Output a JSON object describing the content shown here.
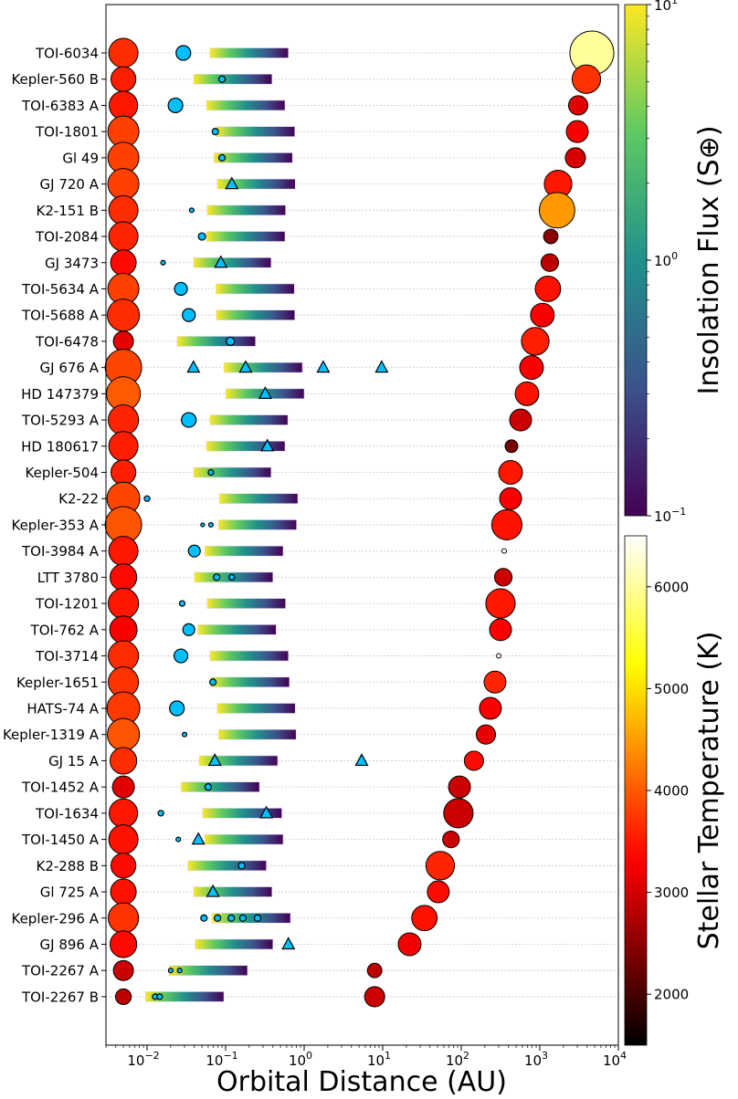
{
  "chart_data": {
    "type": "scatter",
    "xlabel": "Orbital Distance (AU)",
    "xscale": "log",
    "xlim": [
      0.003,
      10000
    ],
    "xticks": [
      {
        "base": "10",
        "exp": "−2"
      },
      {
        "base": "10",
        "exp": "−1"
      },
      {
        "base": "10",
        "exp": "0"
      },
      {
        "base": "10",
        "exp": "1"
      },
      {
        "base": "10",
        "exp": "2"
      },
      {
        "base": "10",
        "exp": "3"
      },
      {
        "base": "10",
        "exp": "4"
      }
    ],
    "grid": "horizontal dotted per system",
    "planet_color": "#00bfff",
    "planet_markers": {
      "o": "circle",
      "^": "triangle"
    },
    "star_position_au": 0.005,
    "colorbars": [
      {
        "label": "Insolation Flux (S⊕)",
        "cmap": "viridis",
        "scale": "log",
        "range": [
          0.1,
          10
        ],
        "ticks": [
          {
            "base": "10",
            "exp": "1"
          },
          {
            "base": "10",
            "exp": "0"
          },
          {
            "base": "10",
            "exp": "−1"
          }
        ]
      },
      {
        "label": "Stellar Temperature (K)",
        "cmap": "hot",
        "range": [
          1500,
          6500
        ],
        "ticks": [
          "6000",
          "5000",
          "4000",
          "3000",
          "2000"
        ]
      }
    ],
    "systems": [
      {
        "name": "TOI-6034",
        "star": {
          "T": 3650,
          "s": 0.8
        },
        "planets": [
          {
            "a": 0.029,
            "s": 1.0,
            "m": "o"
          }
        ],
        "hz": [
          0.063,
          0.63
        ],
        "comp": {
          "a": 4600,
          "T": 6000,
          "s": 1.0
        }
      },
      {
        "name": "Kepler-560 B",
        "star": {
          "T": 3550,
          "s": 0.68
        },
        "planets": [
          {
            "a": 0.09,
            "s": 0.44,
            "m": "o"
          }
        ],
        "hz": [
          0.039,
          0.39
        ],
        "comp": {
          "a": 3920,
          "T": 3700,
          "s": 0.65
        }
      },
      {
        "name": "TOI-6383 A",
        "star": {
          "T": 3500,
          "s": 0.78
        },
        "planets": [
          {
            "a": 0.023,
            "s": 1.0,
            "m": "o"
          }
        ],
        "hz": [
          0.057,
          0.57
        ],
        "comp": {
          "a": 3080,
          "T": 3100,
          "s": 0.44
        }
      },
      {
        "name": "TOI-1801",
        "star": {
          "T": 3800,
          "s": 0.85
        },
        "planets": [
          {
            "a": 0.074,
            "s": 0.44,
            "m": "o"
          }
        ],
        "hz": [
          0.076,
          0.76
        ],
        "comp": {
          "a": 3000,
          "T": 3300,
          "s": 0.5
        }
      },
      {
        "name": "Gl 49",
        "star": {
          "T": 3800,
          "s": 0.85
        },
        "planets": [
          {
            "a": 0.09,
            "s": 0.44,
            "m": "o"
          }
        ],
        "hz": [
          0.071,
          0.71
        ],
        "comp": {
          "a": 2840,
          "T": 3050,
          "s": 0.46
        }
      },
      {
        "name": "GJ 720 A",
        "star": {
          "T": 3800,
          "s": 0.85
        },
        "planets": [
          {
            "a": 0.12,
            "s": 1,
            "m": "^"
          }
        ],
        "hz": [
          0.078,
          0.77
        ],
        "comp": {
          "a": 1710,
          "T": 3500,
          "s": 0.63
        }
      },
      {
        "name": "K2-151 B",
        "star": {
          "T": 3650,
          "s": 0.8
        },
        "planets": [
          {
            "a": 0.037,
            "s": 0.31,
            "m": "o"
          }
        ],
        "hz": [
          0.058,
          0.58
        ],
        "comp": {
          "a": 1660,
          "T": 4470,
          "s": 0.81
        }
      },
      {
        "name": "TOI-2084",
        "star": {
          "T": 3600,
          "s": 0.8
        },
        "planets": [
          {
            "a": 0.05,
            "s": 0.5,
            "m": "o"
          }
        ],
        "hz": [
          0.057,
          0.57
        ],
        "comp": {
          "a": 1380,
          "T": 2500,
          "s": 0.33
        }
      },
      {
        "name": "GJ 3473",
        "star": {
          "T": 3400,
          "s": 0.7
        },
        "planets": [
          {
            "a": 0.016,
            "s": 0.31,
            "m": "o"
          },
          {
            "a": 0.087,
            "s": 1,
            "m": "^"
          }
        ],
        "hz": [
          0.039,
          0.38
        ],
        "comp": {
          "a": 1340,
          "T": 2850,
          "s": 0.4
        }
      },
      {
        "name": "TOI-5634 A",
        "star": {
          "T": 3800,
          "s": 0.85
        },
        "planets": [
          {
            "a": 0.027,
            "s": 0.88,
            "m": "o"
          }
        ],
        "hz": [
          0.075,
          0.75
        ],
        "comp": {
          "a": 1270,
          "T": 3450,
          "s": 0.58
        }
      },
      {
        "name": "TOI-5688 A",
        "star": {
          "T": 3650,
          "s": 0.88
        },
        "planets": [
          {
            "a": 0.034,
            "s": 0.88,
            "m": "o"
          }
        ],
        "hz": [
          0.076,
          0.76
        ],
        "comp": {
          "a": 1080,
          "T": 3300,
          "s": 0.54
        }
      },
      {
        "name": "TOI-6478",
        "star": {
          "T": 3150,
          "s": 0.55
        },
        "planets": [
          {
            "a": 0.115,
            "s": 0.56,
            "m": "o"
          }
        ],
        "hz": [
          0.024,
          0.24
        ],
        "comp": {
          "a": 875,
          "T": 3550,
          "s": 0.63
        }
      },
      {
        "name": "GJ 676 A",
        "star": {
          "T": 3850,
          "s": 1.0
        },
        "planets": [
          {
            "a": 0.039,
            "s": 1,
            "m": "^"
          },
          {
            "a": 0.18,
            "s": 1,
            "m": "^"
          },
          {
            "a": 1.75,
            "s": 1,
            "m": "^"
          },
          {
            "a": 9.7,
            "s": 1,
            "m": "^"
          }
        ],
        "hz": [
          0.095,
          0.95
        ],
        "comp": {
          "a": 785,
          "T": 3300,
          "s": 0.54
        }
      },
      {
        "name": "HD 147379",
        "star": {
          "T": 4000,
          "s": 0.93
        },
        "planets": [
          {
            "a": 0.32,
            "s": 1,
            "m": "^"
          }
        ],
        "hz": [
          0.1,
          1.0
        ],
        "comp": {
          "a": 687,
          "T": 3450,
          "s": 0.54
        }
      },
      {
        "name": "TOI-5293 A",
        "star": {
          "T": 3600,
          "s": 0.83
        },
        "planets": [
          {
            "a": 0.034,
            "s": 1.0,
            "m": "o"
          }
        ],
        "hz": [
          0.063,
          0.62
        ],
        "comp": {
          "a": 570,
          "T": 2950,
          "s": 0.5
        }
      },
      {
        "name": "HD 180617",
        "star": {
          "T": 3550,
          "s": 0.8
        },
        "planets": [
          {
            "a": 0.34,
            "s": 1,
            "m": "^"
          }
        ],
        "hz": [
          0.057,
          0.57
        ],
        "comp": {
          "a": 436,
          "T": 2350,
          "s": 0.29
        }
      },
      {
        "name": "Kepler-504",
        "star": {
          "T": 3550,
          "s": 0.68
        },
        "planets": [
          {
            "a": 0.065,
            "s": 0.38,
            "m": "o"
          }
        ],
        "hz": [
          0.039,
          0.38
        ],
        "comp": {
          "a": 425,
          "T": 3500,
          "s": 0.54
        }
      },
      {
        "name": "K2-22",
        "star": {
          "T": 3850,
          "s": 0.9
        },
        "planets": [
          {
            "a": 0.01,
            "s": 0.38,
            "m": "o"
          }
        ],
        "hz": [
          0.083,
          0.83
        ],
        "comp": {
          "a": 425,
          "T": 3300,
          "s": 0.5
        }
      },
      {
        "name": "Kepler-353 A",
        "star": {
          "T": 3950,
          "s": 1.0
        },
        "planets": [
          {
            "a": 0.051,
            "s": 0.25,
            "m": "o"
          },
          {
            "a": 0.065,
            "s": 0.31,
            "m": "o"
          }
        ],
        "hz": [
          0.081,
          0.8
        ],
        "comp": {
          "a": 381,
          "T": 3450,
          "s": 0.69
        }
      },
      {
        "name": "TOI-3984 A",
        "star": {
          "T": 3500,
          "s": 0.8
        },
        "planets": [
          {
            "a": 0.04,
            "s": 0.81,
            "m": "o"
          }
        ],
        "hz": [
          0.054,
          0.54
        ],
        "comp": {
          "a": 352,
          "T": null,
          "s": 0.1
        }
      },
      {
        "name": "LTT 3780",
        "star": {
          "T": 3400,
          "s": 0.73
        },
        "planets": [
          {
            "a": 0.077,
            "s": 0.44,
            "m": "o"
          },
          {
            "a": 0.12,
            "s": 0.38,
            "m": "o"
          }
        ],
        "hz": [
          0.04,
          0.4
        ],
        "comp": {
          "a": 343,
          "T": 2950,
          "s": 0.4
        }
      },
      {
        "name": "TOI-1201",
        "star": {
          "T": 3500,
          "s": 0.83
        },
        "planets": [
          {
            "a": 0.028,
            "s": 0.38,
            "m": "o"
          }
        ],
        "hz": [
          0.058,
          0.58
        ],
        "comp": {
          "a": 316,
          "T": 3500,
          "s": 0.67
        }
      },
      {
        "name": "TOI-762 A",
        "star": {
          "T": 3300,
          "s": 0.75
        },
        "planets": [
          {
            "a": 0.034,
            "s": 0.81,
            "m": "o"
          }
        ],
        "hz": [
          0.044,
          0.44
        ],
        "comp": {
          "a": 316,
          "T": 3300,
          "s": 0.5
        }
      },
      {
        "name": "TOI-3714",
        "star": {
          "T": 3650,
          "s": 0.83
        },
        "planets": [
          {
            "a": 0.027,
            "s": 0.94,
            "m": "o"
          }
        ],
        "hz": [
          0.063,
          0.63
        ],
        "comp": {
          "a": 300,
          "T": null,
          "s": 0.1
        }
      },
      {
        "name": "Kepler-1651",
        "star": {
          "T": 3700,
          "s": 0.83
        },
        "planets": [
          {
            "a": 0.069,
            "s": 0.44,
            "m": "o"
          }
        ],
        "hz": [
          0.065,
          0.65
        ],
        "comp": {
          "a": 269,
          "T": 3600,
          "s": 0.5
        }
      },
      {
        "name": "HATS-74 A",
        "star": {
          "T": 3750,
          "s": 0.9
        },
        "planets": [
          {
            "a": 0.024,
            "s": 1.0,
            "m": "o"
          }
        ],
        "hz": [
          0.078,
          0.77
        ],
        "comp": {
          "a": 235,
          "T": 3300,
          "s": 0.5
        }
      },
      {
        "name": "Kepler-1319 A",
        "star": {
          "T": 3950,
          "s": 0.88
        },
        "planets": [
          {
            "a": 0.03,
            "s": 0.31,
            "m": "o"
          }
        ],
        "hz": [
          0.081,
          0.79
        ],
        "comp": {
          "a": 206,
          "T": 3150,
          "s": 0.44
        }
      },
      {
        "name": "GJ 15 A",
        "star": {
          "T": 3650,
          "s": 0.73
        },
        "planets": [
          {
            "a": 0.073,
            "s": 1,
            "m": "^"
          },
          {
            "a": 5.4,
            "s": 1,
            "m": "^"
          }
        ],
        "hz": [
          0.046,
          0.46
        ],
        "comp": {
          "a": 145,
          "T": 3400,
          "s": 0.44
        }
      },
      {
        "name": "TOI-1452 A",
        "star": {
          "T": 3100,
          "s": 0.6
        },
        "planets": [
          {
            "a": 0.06,
            "s": 0.44,
            "m": "o"
          }
        ],
        "hz": [
          0.027,
          0.27
        ],
        "comp": {
          "a": 95,
          "T": 2950,
          "s": 0.5
        }
      },
      {
        "name": "TOI-1634",
        "star": {
          "T": 3500,
          "s": 0.78
        },
        "planets": [
          {
            "a": 0.015,
            "s": 0.38,
            "m": "o"
          },
          {
            "a": 0.33,
            "s": 1,
            "m": "^"
          }
        ],
        "hz": [
          0.051,
          0.52
        ],
        "comp": {
          "a": 92,
          "T": 2950,
          "s": 0.67
        }
      },
      {
        "name": "TOI-1450 A",
        "star": {
          "T": 3450,
          "s": 0.8
        },
        "planets": [
          {
            "a": 0.025,
            "s": 0.31,
            "m": "o"
          },
          {
            "a": 0.045,
            "s": 1,
            "m": "^"
          }
        ],
        "hz": [
          0.054,
          0.54
        ],
        "comp": {
          "a": 74,
          "T": 2950,
          "s": 0.38
        }
      },
      {
        "name": "K2-288 B",
        "star": {
          "T": 3400,
          "s": 0.68
        },
        "planets": [
          {
            "a": 0.16,
            "s": 0.44,
            "m": "o"
          }
        ],
        "hz": [
          0.033,
          0.33
        ],
        "comp": {
          "a": 54,
          "T": 3600,
          "s": 0.65
        }
      },
      {
        "name": "Gl 725 A",
        "star": {
          "T": 3450,
          "s": 0.7
        },
        "planets": [
          {
            "a": 0.069,
            "s": 1,
            "m": "^"
          }
        ],
        "hz": [
          0.039,
          0.39
        ],
        "comp": {
          "a": 51,
          "T": 3400,
          "s": 0.5
        }
      },
      {
        "name": "Kepler-296 A",
        "star": {
          "T": 3700,
          "s": 0.83
        },
        "planets": [
          {
            "a": 0.053,
            "s": 0.44,
            "m": "o"
          },
          {
            "a": 0.079,
            "s": 0.44,
            "m": "o"
          },
          {
            "a": 0.118,
            "s": 0.44,
            "m": "o"
          },
          {
            "a": 0.166,
            "s": 0.44,
            "m": "o"
          },
          {
            "a": 0.255,
            "s": 0.44,
            "m": "o"
          }
        ],
        "hz": [
          0.067,
          0.67
        ],
        "comp": {
          "a": 34,
          "T": 3450,
          "s": 0.58
        }
      },
      {
        "name": "GJ 896 A",
        "star": {
          "T": 3400,
          "s": 0.73
        },
        "planets": [
          {
            "a": 0.63,
            "s": 1,
            "m": "^"
          }
        ],
        "hz": [
          0.041,
          0.4
        ],
        "comp": {
          "a": 22,
          "T": 3250,
          "s": 0.52
        }
      },
      {
        "name": "TOI-2267 A",
        "star": {
          "T": 2950,
          "s": 0.55
        },
        "planets": [
          {
            "a": 0.02,
            "s": 0.31,
            "m": "o"
          },
          {
            "a": 0.026,
            "s": 0.31,
            "m": "o"
          }
        ],
        "hz": [
          0.019,
          0.19
        ],
        "comp": {
          "a": 7.9,
          "T": 2850,
          "s": 0.33
        }
      },
      {
        "name": "TOI-2267 B",
        "star": {
          "T": 2850,
          "s": 0.43
        },
        "planets": [
          {
            "a": 0.0127,
            "s": 0.38,
            "m": "o"
          },
          {
            "a": 0.0145,
            "s": 0.38,
            "m": "o"
          }
        ],
        "hz": [
          0.0095,
          0.095
        ],
        "comp": {
          "a": 7.9,
          "T": 2950,
          "s": 0.46
        }
      }
    ]
  }
}
